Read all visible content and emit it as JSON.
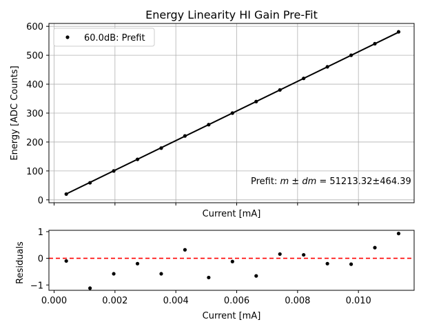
{
  "chart_data": [
    {
      "type": "scatter",
      "title": "Energy Linearity HI Gain Pre-Fit",
      "xlabel": "Current [mA]",
      "ylabel": "Energy [ADC Counts]",
      "xlim": [
        -0.00017,
        0.01183
      ],
      "ylim": [
        -10,
        610
      ],
      "xticks": [
        0.0,
        0.002,
        0.004,
        0.006,
        0.008,
        0.01
      ],
      "yticks": [
        0,
        100,
        200,
        300,
        400,
        500,
        600
      ],
      "ytick_labels": [
        "0",
        "100",
        "200",
        "300",
        "400",
        "500",
        "600"
      ],
      "show_xtick_labels": false,
      "grid": true,
      "legend": "upper-left",
      "series": [
        {
          "name": "60.0dB: Prefit",
          "marker": "dot",
          "color": "#000000",
          "x": [
            0.0004,
            0.00118,
            0.00196,
            0.00274,
            0.00352,
            0.0043,
            0.00508,
            0.00586,
            0.00664,
            0.00742,
            0.0082,
            0.00898,
            0.00976,
            0.01054,
            0.01132
          ],
          "y": [
            20,
            59,
            100,
            140,
            179,
            221,
            260,
            300,
            340,
            380,
            420,
            460,
            500,
            540,
            581
          ]
        }
      ],
      "fit_line": {
        "slope": 51213.32,
        "intercept": 0,
        "color": "#000000"
      },
      "annotation": {
        "prefix": "Prefit: ",
        "m": "m",
        "pm": " ± ",
        "dm": "dm",
        "suffix": " = 51213.32±464.39"
      }
    },
    {
      "type": "scatter",
      "xlabel": "Current [mA]",
      "ylabel": "Residuals",
      "xlim": [
        -0.00017,
        0.01183
      ],
      "ylim": [
        -1.2,
        1.05
      ],
      "xticks": [
        0.0,
        0.002,
        0.004,
        0.006,
        0.008,
        0.01
      ],
      "xtick_labels": [
        "0.000",
        "0.002",
        "0.004",
        "0.006",
        "0.008",
        "0.010"
      ],
      "yticks": [
        -1,
        0,
        1
      ],
      "ytick_labels": [
        "−1",
        "0",
        "1"
      ],
      "grid": false,
      "reference_line": {
        "y": 0,
        "color": "#ff0000",
        "style": "dashed"
      },
      "series": [
        {
          "marker": "dot",
          "color": "#000000",
          "x": [
            0.0004,
            0.00118,
            0.00196,
            0.00274,
            0.00352,
            0.0043,
            0.00508,
            0.00586,
            0.00664,
            0.00742,
            0.0082,
            0.00898,
            0.00976,
            0.01054,
            0.01132
          ],
          "y": [
            -0.1,
            -1.12,
            -0.58,
            -0.2,
            -0.58,
            0.32,
            -0.72,
            -0.12,
            -0.66,
            0.16,
            0.13,
            -0.2,
            -0.22,
            0.4,
            0.93
          ]
        }
      ]
    }
  ]
}
